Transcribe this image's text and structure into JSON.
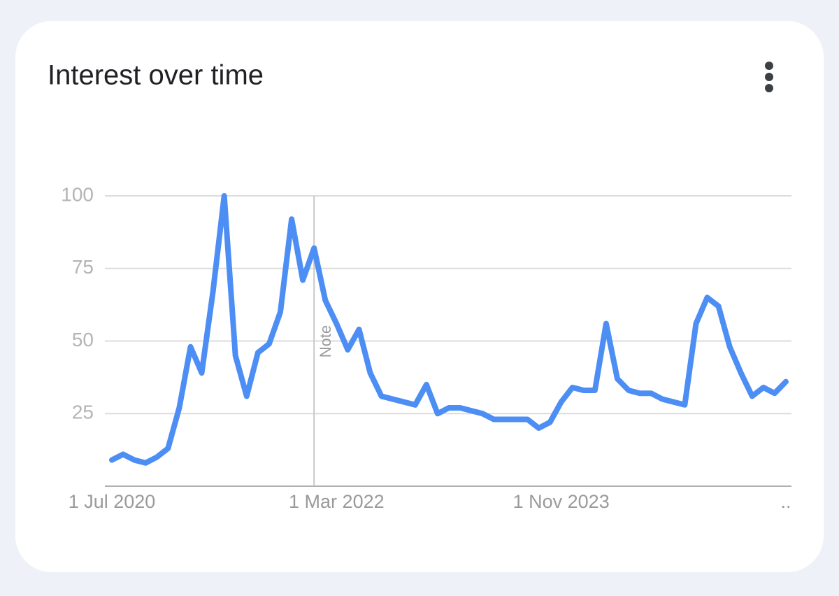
{
  "chart_data": {
    "type": "line",
    "title": "Interest over time",
    "categories": [
      "1 Jul 2020",
      null,
      null,
      null,
      null,
      null,
      null,
      null,
      null,
      null,
      null,
      null,
      null,
      null,
      null,
      null,
      null,
      null,
      null,
      null,
      "1 Mar 2022",
      null,
      null,
      null,
      null,
      null,
      null,
      null,
      null,
      null,
      null,
      null,
      null,
      null,
      null,
      null,
      null,
      null,
      null,
      null,
      "1 Nov 2023",
      null,
      null,
      null,
      null,
      null,
      null,
      null,
      null,
      null,
      null,
      null,
      null,
      null,
      null,
      null,
      null,
      null,
      null,
      null,
      ".."
    ],
    "series": [
      {
        "color": "#4d8ef5",
        "values": [
          9,
          11,
          9,
          8,
          10,
          13,
          27,
          48,
          39,
          67,
          100,
          45,
          31,
          46,
          49,
          60,
          92,
          71,
          82,
          64,
          56,
          47,
          54,
          39,
          31,
          30,
          29,
          28,
          35,
          25,
          27,
          27,
          26,
          25,
          23,
          23,
          23,
          23,
          20,
          22,
          29,
          34,
          33,
          33,
          56,
          37,
          33,
          32,
          32,
          30,
          29,
          28,
          56,
          65,
          62,
          48,
          39,
          31,
          34,
          32,
          36
        ]
      }
    ],
    "annotations": [
      {
        "text": "Note",
        "category_index": 18
      }
    ],
    "ylim": [
      0,
      100
    ],
    "yticks": [
      25,
      50,
      75,
      100
    ],
    "grid": true
  }
}
